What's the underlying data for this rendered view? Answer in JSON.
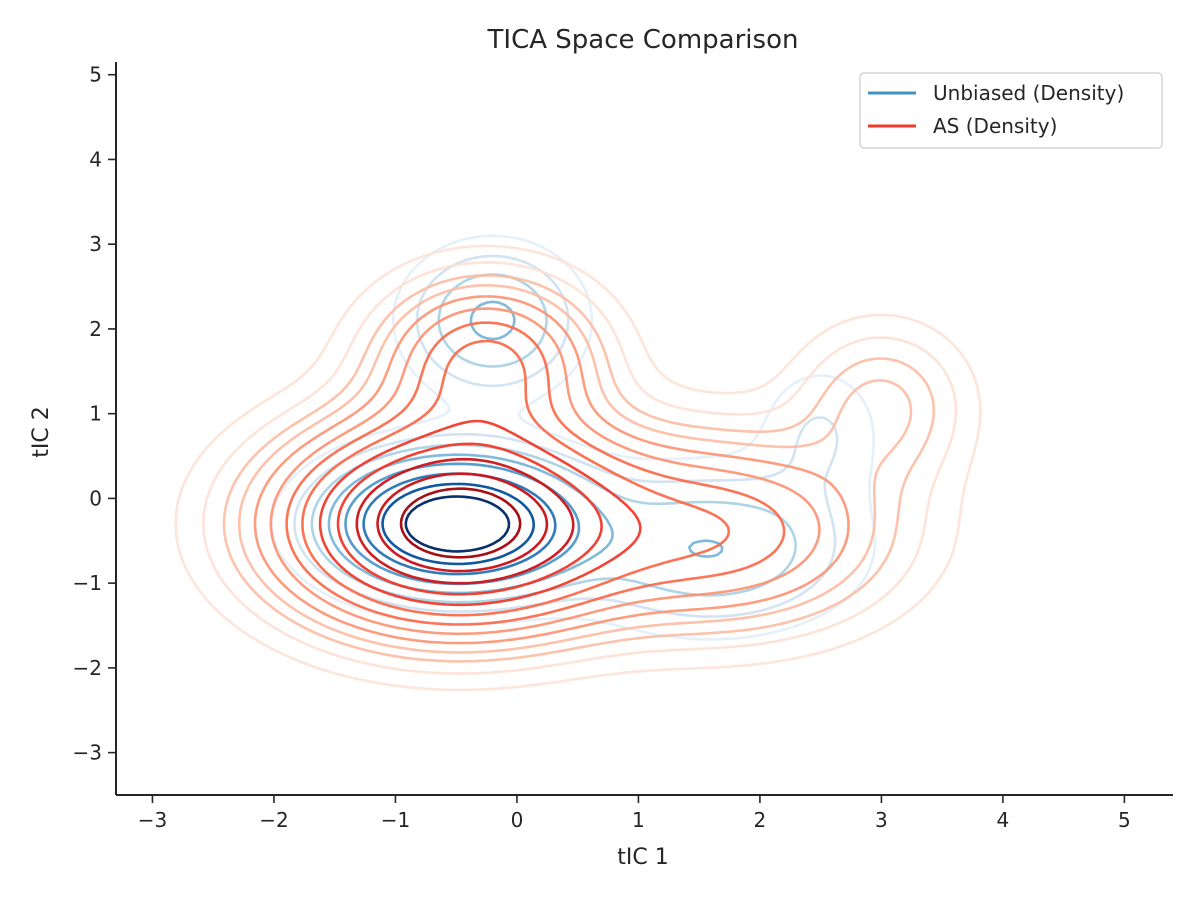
{
  "chart_data": {
    "type": "contour",
    "title": "TICA Space Comparison",
    "xlabel": "tIC 1",
    "ylabel": "tIC 2",
    "xlim": [
      -3.3,
      5.4
    ],
    "ylim": [
      -3.5,
      5.15
    ],
    "xticks": [
      -3,
      -2,
      -1,
      0,
      1,
      2,
      3,
      4,
      5
    ],
    "yticks": [
      -3,
      -2,
      -1,
      0,
      1,
      2,
      3,
      4,
      5
    ],
    "xtick_labels": [
      "−3",
      "−2",
      "−1",
      "0",
      "1",
      "2",
      "3",
      "4",
      "5"
    ],
    "ytick_labels": [
      "−3",
      "−2",
      "−1",
      "0",
      "1",
      "2",
      "3",
      "4",
      "5"
    ],
    "grid": false,
    "legend_position": "upper right",
    "series": [
      {
        "name": "Unbiased (Density)",
        "legend_color": "#4292c6",
        "level_colors": [
          "#deebf7",
          "#c6dbef",
          "#9ecae1",
          "#6baed6",
          "#4292c6",
          "#2171b5",
          "#08519c",
          "#08306b"
        ],
        "components": [
          {
            "center": [
              -0.5,
              -0.3
            ],
            "sigma": [
              0.62,
              0.48
            ],
            "weight": 1.0
          },
          {
            "center": [
              -0.2,
              2.1
            ],
            "sigma": [
              0.45,
              0.55
            ],
            "weight": 0.26
          },
          {
            "center": [
              1.6,
              -0.6
            ],
            "sigma": [
              0.75,
              0.6
            ],
            "weight": 0.24
          },
          {
            "center": [
              2.5,
              0.8
            ],
            "sigma": [
              0.35,
              0.55
            ],
            "weight": 0.1
          }
        ],
        "levels": [
          0.05,
          0.1,
          0.16,
          0.24,
          0.34,
          0.47,
          0.62,
          0.8
        ]
      },
      {
        "name": "AS (Density)",
        "legend_color": "#ef3b2c",
        "level_colors": [
          "#fee0d2",
          "#fcbba1",
          "#fc9272",
          "#fb6a4a",
          "#ef3b2c",
          "#cb181d",
          "#a50f15"
        ],
        "components": [
          {
            "center": [
              -0.5,
              -0.3
            ],
            "sigma": [
              0.85,
              0.72
            ],
            "weight": 1.0
          },
          {
            "center": [
              -0.25,
              1.6
            ],
            "sigma": [
              0.55,
              0.6
            ],
            "weight": 0.35
          },
          {
            "center": [
              1.7,
              -0.4
            ],
            "sigma": [
              0.85,
              0.7
            ],
            "weight": 0.3
          },
          {
            "center": [
              3.0,
              1.1
            ],
            "sigma": [
              0.45,
              0.6
            ],
            "weight": 0.12
          }
        ],
        "levels": [
          0.025,
          0.05,
          0.08,
          0.11,
          0.15,
          0.2,
          0.26,
          0.33,
          0.42,
          0.52,
          0.63,
          0.75,
          0.87
        ]
      }
    ]
  }
}
